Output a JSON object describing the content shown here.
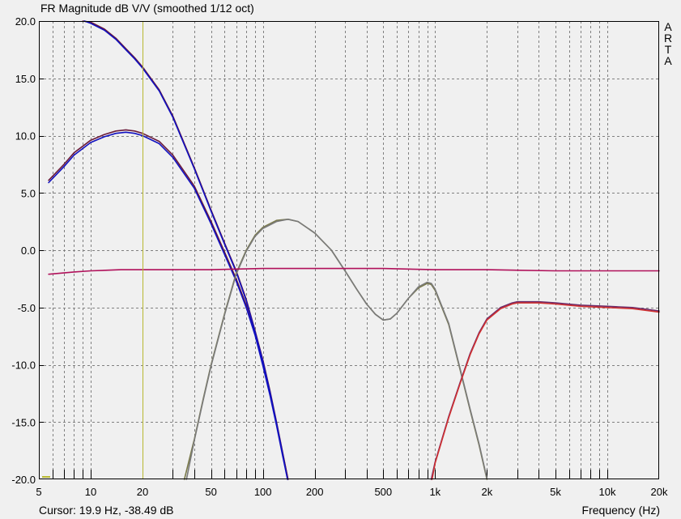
{
  "brand": [
    "A",
    "R",
    "T",
    "A"
  ],
  "cursor_readout": "Cursor: 19.9 Hz, -38.49 dB",
  "colors": {
    "background": "#f0f0f0",
    "grid": "#808080",
    "cursor_line": "#b8b830",
    "woofer": "#1010c0",
    "woofer_alt": "#6a1a3a",
    "mid": "#7a7a7a",
    "mid_alt": "#7a7a4a",
    "tweeter": "#d03030",
    "tweeter_alt": "#6a2a6a",
    "sum": "#b0105a"
  },
  "chart_data": {
    "type": "line",
    "title": "FR Magnitude dB V/V (smoothed 1/12 oct)",
    "xlabel": "Frequency (Hz)",
    "ylabel": "",
    "x_scale": "log",
    "xlim": [
      5,
      20000
    ],
    "ylim": [
      -20,
      20
    ],
    "grid": true,
    "x_tick_labels": [
      {
        "value": 5,
        "label": "5"
      },
      {
        "value": 10,
        "label": "10"
      },
      {
        "value": 20,
        "label": "20"
      },
      {
        "value": 50,
        "label": "50"
      },
      {
        "value": 100,
        "label": "100"
      },
      {
        "value": 200,
        "label": "200"
      },
      {
        "value": 500,
        "label": "500"
      },
      {
        "value": 1000,
        "label": "1k"
      },
      {
        "value": 2000,
        "label": "2k"
      },
      {
        "value": 5000,
        "label": "5k"
      },
      {
        "value": 10000,
        "label": "10k"
      },
      {
        "value": 20000,
        "label": "20k"
      }
    ],
    "y_tick_labels": [
      {
        "value": 20,
        "label": "20.0"
      },
      {
        "value": 15,
        "label": "15.0"
      },
      {
        "value": 10,
        "label": "10.0"
      },
      {
        "value": 5,
        "label": "5.0"
      },
      {
        "value": 0,
        "label": "0.0"
      },
      {
        "value": -5,
        "label": "-5.0"
      },
      {
        "value": -10,
        "label": "-10.0"
      },
      {
        "value": -15,
        "label": "-15.0"
      },
      {
        "value": -20,
        "label": "-20.0"
      }
    ],
    "cursor": {
      "frequency_hz": 19.9,
      "level_db": -38.49
    },
    "series": [
      {
        "color": "woofer_alt",
        "points": [
          [
            5.7,
            6.1
          ],
          [
            7,
            7.5
          ],
          [
            8,
            8.5
          ],
          [
            10,
            9.6
          ],
          [
            12,
            10.1
          ],
          [
            14,
            10.4
          ],
          [
            16,
            10.5
          ],
          [
            18,
            10.4
          ],
          [
            20,
            10.2
          ],
          [
            25,
            9.5
          ],
          [
            30,
            8.3
          ],
          [
            40,
            5.6
          ],
          [
            50,
            2.5
          ],
          [
            60,
            -0.2
          ],
          [
            70,
            -2.5
          ],
          [
            80,
            -4.8
          ],
          [
            90,
            -7.2
          ],
          [
            100,
            -9.9
          ],
          [
            110,
            -12.5
          ],
          [
            120,
            -15.1
          ],
          [
            130,
            -17.7
          ],
          [
            140,
            -20.0
          ]
        ]
      },
      {
        "color": "woofer",
        "points": [
          [
            5.7,
            5.9
          ],
          [
            7,
            7.3
          ],
          [
            8,
            8.3
          ],
          [
            10,
            9.4
          ],
          [
            12,
            9.9
          ],
          [
            14,
            10.2
          ],
          [
            16,
            10.3
          ],
          [
            18,
            10.2
          ],
          [
            20,
            10.0
          ],
          [
            25,
            9.3
          ],
          [
            30,
            8.1
          ],
          [
            40,
            5.4
          ],
          [
            50,
            2.3
          ],
          [
            60,
            -0.4
          ],
          [
            70,
            -2.7
          ],
          [
            80,
            -5.0
          ],
          [
            90,
            -7.4
          ],
          [
            100,
            -10.1
          ],
          [
            110,
            -12.7
          ],
          [
            120,
            -15.3
          ],
          [
            130,
            -17.9
          ],
          [
            139,
            -20.0
          ]
        ]
      },
      {
        "color": "woofer_alt",
        "points": [
          [
            9,
            20.0
          ],
          [
            10,
            19.9
          ],
          [
            12,
            19.3
          ],
          [
            14,
            18.5
          ],
          [
            16,
            17.6
          ],
          [
            18,
            16.8
          ],
          [
            20,
            16.0
          ],
          [
            25,
            14.0
          ],
          [
            30,
            11.7
          ],
          [
            40,
            7.2
          ],
          [
            50,
            3.5
          ],
          [
            60,
            0.6
          ],
          [
            70,
            -1.8
          ],
          [
            80,
            -4.3
          ],
          [
            90,
            -7.0
          ],
          [
            100,
            -9.6
          ],
          [
            110,
            -12.3
          ],
          [
            120,
            -15.0
          ],
          [
            130,
            -17.6
          ],
          [
            140,
            -20.0
          ]
        ]
      },
      {
        "color": "woofer",
        "points": [
          [
            9.2,
            20.0
          ],
          [
            10,
            19.8
          ],
          [
            12,
            19.2
          ],
          [
            14,
            18.4
          ],
          [
            16,
            17.5
          ],
          [
            18,
            16.7
          ],
          [
            20,
            15.9
          ],
          [
            25,
            13.9
          ],
          [
            30,
            11.6
          ],
          [
            40,
            7.1
          ],
          [
            50,
            3.4
          ],
          [
            60,
            0.5
          ],
          [
            70,
            -1.9
          ],
          [
            80,
            -4.4
          ],
          [
            90,
            -7.1
          ],
          [
            100,
            -9.7
          ],
          [
            110,
            -12.4
          ],
          [
            120,
            -15.1
          ],
          [
            130,
            -17.7
          ],
          [
            139,
            -20.0
          ]
        ]
      },
      {
        "color": "mid_alt",
        "points": [
          [
            35,
            -20.0
          ],
          [
            40,
            -16.5
          ],
          [
            45,
            -13.0
          ],
          [
            50,
            -10.0
          ],
          [
            60,
            -5.5
          ],
          [
            70,
            -2.0
          ],
          [
            80,
            0.0
          ],
          [
            90,
            1.3
          ],
          [
            100,
            2.0
          ],
          [
            120,
            2.6
          ],
          [
            140,
            2.7
          ],
          [
            160,
            2.5
          ],
          [
            200,
            1.5
          ],
          [
            250,
            0.0
          ],
          [
            300,
            -1.8
          ],
          [
            350,
            -3.4
          ],
          [
            400,
            -4.7
          ],
          [
            450,
            -5.6
          ],
          [
            500,
            -6.1
          ],
          [
            550,
            -6.0
          ],
          [
            600,
            -5.5
          ],
          [
            700,
            -4.2
          ],
          [
            800,
            -3.3
          ],
          [
            900,
            -2.9
          ],
          [
            950,
            -3.0
          ],
          [
            1000,
            -3.5
          ],
          [
            1200,
            -6.5
          ],
          [
            1400,
            -10.5
          ],
          [
            1600,
            -14.0
          ],
          [
            1800,
            -17.0
          ],
          [
            2000,
            -20.0
          ]
        ]
      },
      {
        "color": "mid",
        "points": [
          [
            36,
            -20.0
          ],
          [
            40,
            -16.6
          ],
          [
            45,
            -13.1
          ],
          [
            50,
            -10.1
          ],
          [
            60,
            -5.6
          ],
          [
            70,
            -2.1
          ],
          [
            80,
            -0.1
          ],
          [
            90,
            1.2
          ],
          [
            100,
            1.9
          ],
          [
            120,
            2.5
          ],
          [
            140,
            2.7
          ],
          [
            160,
            2.5
          ],
          [
            200,
            1.5
          ],
          [
            250,
            0.0
          ],
          [
            300,
            -1.8
          ],
          [
            350,
            -3.4
          ],
          [
            400,
            -4.7
          ],
          [
            450,
            -5.6
          ],
          [
            500,
            -6.1
          ],
          [
            550,
            -6.0
          ],
          [
            600,
            -5.5
          ],
          [
            700,
            -4.2
          ],
          [
            800,
            -3.2
          ],
          [
            900,
            -2.8
          ],
          [
            950,
            -2.9
          ],
          [
            1000,
            -3.4
          ],
          [
            1200,
            -6.4
          ],
          [
            1400,
            -10.4
          ],
          [
            1600,
            -13.9
          ],
          [
            1800,
            -16.9
          ],
          [
            2000,
            -19.9
          ]
        ]
      },
      {
        "color": "tweeter_alt",
        "points": [
          [
            950,
            -20.0
          ],
          [
            1000,
            -18.5
          ],
          [
            1200,
            -14.5
          ],
          [
            1400,
            -11.5
          ],
          [
            1600,
            -9.0
          ],
          [
            1800,
            -7.2
          ],
          [
            2000,
            -6.0
          ],
          [
            2400,
            -5.0
          ],
          [
            2800,
            -4.6
          ],
          [
            3000,
            -4.5
          ],
          [
            4000,
            -4.5
          ],
          [
            5000,
            -4.6
          ],
          [
            7000,
            -4.8
          ],
          [
            10000,
            -4.9
          ],
          [
            14000,
            -5.0
          ],
          [
            20000,
            -5.3
          ]
        ]
      },
      {
        "color": "tweeter",
        "points": [
          [
            960,
            -20.0
          ],
          [
            1000,
            -18.6
          ],
          [
            1200,
            -14.6
          ],
          [
            1400,
            -11.6
          ],
          [
            1600,
            -9.1
          ],
          [
            1800,
            -7.3
          ],
          [
            2000,
            -6.1
          ],
          [
            2400,
            -5.1
          ],
          [
            2800,
            -4.7
          ],
          [
            3000,
            -4.6
          ],
          [
            4000,
            -4.6
          ],
          [
            5000,
            -4.7
          ],
          [
            7000,
            -4.9
          ],
          [
            10000,
            -5.0
          ],
          [
            14000,
            -5.1
          ],
          [
            20000,
            -5.4
          ]
        ]
      },
      {
        "color": "sum",
        "points": [
          [
            5.7,
            -2.1
          ],
          [
            8,
            -1.9
          ],
          [
            10,
            -1.8
          ],
          [
            15,
            -1.7
          ],
          [
            20,
            -1.7
          ],
          [
            50,
            -1.7
          ],
          [
            100,
            -1.6
          ],
          [
            200,
            -1.6
          ],
          [
            500,
            -1.6
          ],
          [
            1000,
            -1.7
          ],
          [
            2000,
            -1.7
          ],
          [
            5000,
            -1.8
          ],
          [
            10000,
            -1.8
          ],
          [
            20000,
            -1.8
          ]
        ]
      }
    ]
  }
}
